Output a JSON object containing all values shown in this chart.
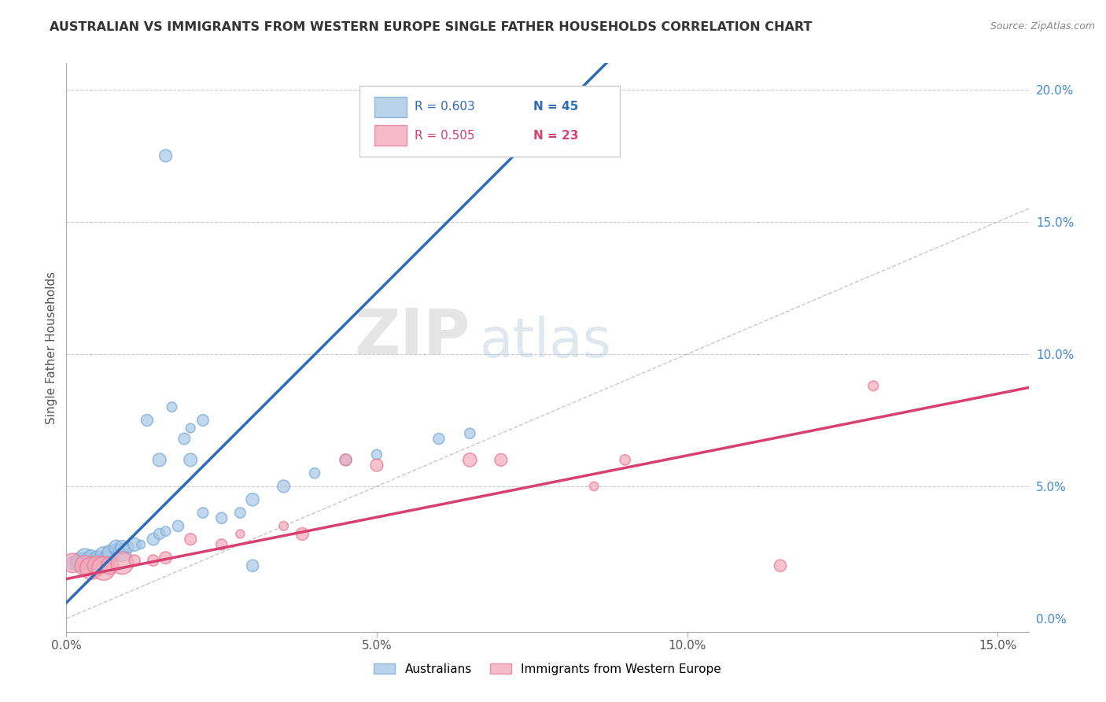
{
  "title": "AUSTRALIAN VS IMMIGRANTS FROM WESTERN EUROPE SINGLE FATHER HOUSEHOLDS CORRELATION CHART",
  "source": "Source: ZipAtlas.com",
  "ylabel": "Single Father Households",
  "australian_color": "#A8C8E8",
  "immigrant_color": "#F4AABB",
  "australian_edge_color": "#7AAAD4",
  "immigrant_edge_color": "#E87898",
  "australian_line_color": "#2E6CB8",
  "immigrant_line_color": "#D84070",
  "diagonal_color": "#BBBBBB",
  "background_color": "#FFFFFF",
  "grid_color": "#CCCCCC",
  "watermark_zip": "ZIP",
  "watermark_atlas": "atlas",
  "xlim": [
    0.0,
    0.155
  ],
  "ylim": [
    -0.005,
    0.205
  ],
  "aus_points": [
    [
      0.001,
      0.022
    ],
    [
      0.002,
      0.023
    ],
    [
      0.002,
      0.021
    ],
    [
      0.003,
      0.022
    ],
    [
      0.003,
      0.023
    ],
    [
      0.004,
      0.021
    ],
    [
      0.004,
      0.022
    ],
    [
      0.005,
      0.022
    ],
    [
      0.005,
      0.024
    ],
    [
      0.006,
      0.022
    ],
    [
      0.006,
      0.023
    ],
    [
      0.007,
      0.023
    ],
    [
      0.007,
      0.025
    ],
    [
      0.008,
      0.024
    ],
    [
      0.008,
      0.025
    ],
    [
      0.009,
      0.025
    ],
    [
      0.009,
      0.026
    ],
    [
      0.01,
      0.026
    ],
    [
      0.011,
      0.028
    ],
    [
      0.012,
      0.027
    ],
    [
      0.013,
      0.028
    ],
    [
      0.013,
      0.03
    ],
    [
      0.014,
      0.028
    ],
    [
      0.015,
      0.03
    ],
    [
      0.016,
      0.075
    ],
    [
      0.018,
      0.065
    ],
    [
      0.02,
      0.08
    ],
    [
      0.021,
      0.06
    ],
    [
      0.017,
      0.065
    ],
    [
      0.019,
      0.07
    ],
    [
      0.022,
      0.075
    ],
    [
      0.024,
      0.08
    ],
    [
      0.016,
      0.03
    ],
    [
      0.018,
      0.032
    ],
    [
      0.025,
      0.065
    ],
    [
      0.026,
      0.07
    ],
    [
      0.03,
      0.068
    ],
    [
      0.032,
      0.072
    ],
    [
      0.022,
      0.038
    ],
    [
      0.025,
      0.04
    ],
    [
      0.03,
      0.05
    ],
    [
      0.04,
      0.06
    ],
    [
      0.045,
      0.065
    ],
    [
      0.05,
      0.07
    ],
    [
      0.035,
      0.02
    ]
  ],
  "imm_points": [
    [
      0.001,
      0.022
    ],
    [
      0.003,
      0.02
    ],
    [
      0.005,
      0.019
    ],
    [
      0.007,
      0.02
    ],
    [
      0.008,
      0.018
    ],
    [
      0.009,
      0.021
    ],
    [
      0.01,
      0.023
    ],
    [
      0.012,
      0.022
    ],
    [
      0.015,
      0.025
    ],
    [
      0.018,
      0.03
    ],
    [
      0.022,
      0.028
    ],
    [
      0.025,
      0.03
    ],
    [
      0.03,
      0.032
    ],
    [
      0.035,
      0.035
    ],
    [
      0.038,
      0.03
    ],
    [
      0.04,
      0.06
    ],
    [
      0.045,
      0.05
    ],
    [
      0.06,
      0.06
    ],
    [
      0.065,
      0.06
    ],
    [
      0.08,
      0.05
    ],
    [
      0.085,
      0.06
    ],
    [
      0.1,
      0.058
    ],
    [
      0.13,
      0.088
    ]
  ],
  "aus_line": {
    "x0": 0.0,
    "y0": 0.008,
    "x1": 0.055,
    "y1": 0.135
  },
  "imm_line": {
    "x0": 0.0,
    "y0": 0.015,
    "x1": 0.15,
    "y1": 0.085
  }
}
